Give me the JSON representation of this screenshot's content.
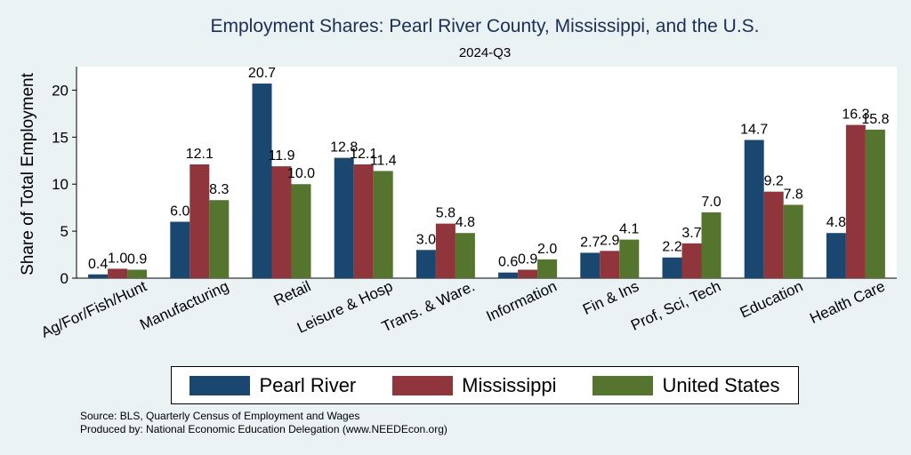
{
  "chart_data": {
    "type": "bar",
    "title": "Employment Shares: Pearl River County, Mississippi, and the U.S.",
    "subtitle": "2024-Q3",
    "ylabel": "Share of Total Employment",
    "xlabel": "",
    "ylim": [
      0,
      22.5
    ],
    "yticks": [
      0,
      5,
      10,
      15,
      20
    ],
    "grid": false,
    "legend_position": "bottom",
    "categories": [
      "Ag/For/Fish/Hunt",
      "Manufacturing",
      "Retail",
      "Leisure & Hosp",
      "Trans. & Ware.",
      "Information",
      "Fin & Ins",
      "Prof, Sci, Tech",
      "Education",
      "Health Care"
    ],
    "series": [
      {
        "name": "Pearl River",
        "color": "#1a476f",
        "values": [
          0.4,
          6.0,
          20.7,
          12.8,
          3.0,
          0.6,
          2.7,
          2.2,
          14.7,
          4.8
        ]
      },
      {
        "name": "Mississippi",
        "color": "#90353b",
        "values": [
          1.0,
          12.1,
          11.9,
          12.1,
          5.8,
          0.9,
          2.9,
          3.7,
          9.2,
          16.3
        ]
      },
      {
        "name": "United States",
        "color": "#55752f",
        "values": [
          0.9,
          8.3,
          10.0,
          11.4,
          4.8,
          2.0,
          4.1,
          7.0,
          7.8,
          15.8
        ]
      }
    ]
  },
  "footnotes": {
    "source": "Source: BLS, Quarterly Census of Employment and Wages",
    "produced": "Produced by: National Economic Education Delegation (www.NEEDEcon.org)"
  }
}
